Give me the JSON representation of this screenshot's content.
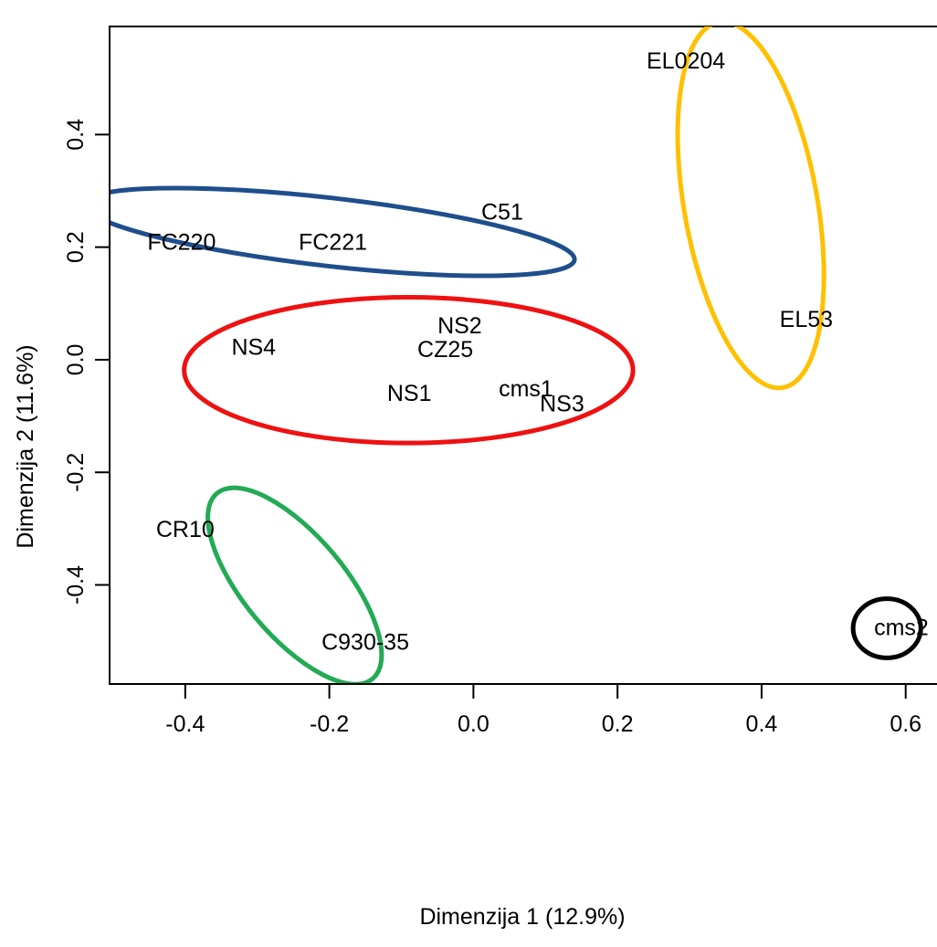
{
  "chart_data": {
    "type": "scatter",
    "title": "",
    "xlabel": "Dimenzija 1 (12.9%)",
    "ylabel": "Dimenzija 2 (11.6%)",
    "xlim": [
      -0.505,
      0.646
    ],
    "ylim": [
      -0.576,
      0.592
    ],
    "xticks": [
      -0.4,
      -0.2,
      0.0,
      0.2,
      0.4,
      0.6
    ],
    "xtick_labels": [
      "-0.4",
      "-0.2",
      "0.0",
      "0.2",
      "0.4",
      "0.6"
    ],
    "yticks": [
      -0.4,
      -0.2,
      0.0,
      0.2,
      0.4
    ],
    "ytick_labels": [
      "-0.4",
      "-0.2",
      "0.0",
      "0.2",
      "0.4"
    ],
    "grid": false,
    "points": [
      {
        "label": "EL0204",
        "x": 0.295,
        "y": 0.53
      },
      {
        "label": "EL53",
        "x": 0.462,
        "y": 0.071
      },
      {
        "label": "C51",
        "x": 0.04,
        "y": 0.262
      },
      {
        "label": "FC220",
        "x": -0.405,
        "y": 0.208
      },
      {
        "label": "FC221",
        "x": -0.195,
        "y": 0.208
      },
      {
        "label": "NS2",
        "x": -0.019,
        "y": 0.06
      },
      {
        "label": "CZ25",
        "x": -0.039,
        "y": 0.018
      },
      {
        "label": "NS4",
        "x": -0.305,
        "y": 0.022
      },
      {
        "label": "NS1",
        "x": -0.089,
        "y": -0.06
      },
      {
        "label": "cms1",
        "x": 0.073,
        "y": -0.052
      },
      {
        "label": "NS3",
        "x": 0.123,
        "y": -0.079
      },
      {
        "label": "CR10",
        "x": -0.4,
        "y": -0.302
      },
      {
        "label": "C930-35",
        "x": -0.15,
        "y": -0.502
      },
      {
        "label": "cms2",
        "x": 0.594,
        "y": -0.476
      }
    ],
    "groups": [
      {
        "color": "#1f4e8c",
        "cx": -0.2,
        "cy": 0.227,
        "rx": 0.3425,
        "ry": 0.0605,
        "angle_deg": 6.5
      },
      {
        "color": "#ee1111",
        "cx": -0.09,
        "cy": -0.0185,
        "rx": 0.3115,
        "ry": 0.1295,
        "angle_deg": 0
      },
      {
        "color": "#ffc000",
        "cx": 0.385,
        "cy": 0.275,
        "rx": 0.0925,
        "ry": 0.3295,
        "angle_deg": -10
      },
      {
        "color": "#22aa55",
        "cx": -0.248,
        "cy": -0.402,
        "rx": 0.07,
        "ry": 0.215,
        "angle_deg": -40
      },
      {
        "color": "#000000",
        "cx": 0.574,
        "cy": -0.477,
        "rx": 0.047,
        "ry": 0.0525,
        "angle_deg": 0
      }
    ]
  }
}
